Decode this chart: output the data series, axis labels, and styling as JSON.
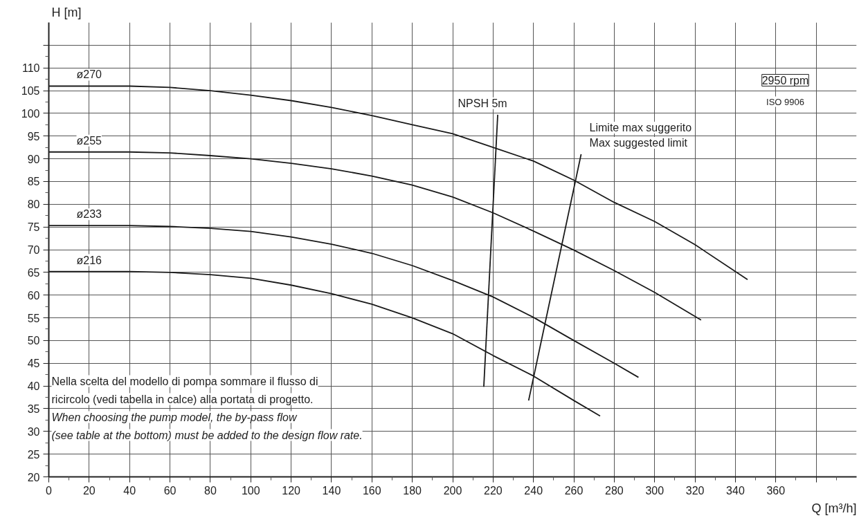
{
  "chart_data": {
    "type": "line",
    "subtitle": "2950 rpm",
    "xlabel": "Q [m³/h]",
    "ylabel": "H [m]",
    "series": [
      {
        "name": "ø270",
        "color": "#1a1a1a",
        "values": [
          106,
          106,
          105.7,
          105,
          104,
          102.8,
          101.3,
          99.5,
          97.5,
          95.5,
          92.5,
          89.5,
          85.3,
          80.4,
          76.2,
          71.1,
          63.4
        ],
        "x": [
          0,
          40,
          60,
          80,
          100,
          120,
          140,
          160,
          180,
          200,
          220,
          240,
          260,
          280,
          300,
          320,
          346
        ]
      },
      {
        "name": "ø255",
        "color": "#1a1a1a",
        "values": [
          91.5,
          91.5,
          91.3,
          90.7,
          90,
          89,
          87.8,
          86.2,
          84.2,
          81.6,
          78.1,
          74.1,
          69.9,
          65.4,
          60.6,
          54.5
        ],
        "x": [
          0,
          40,
          60,
          80,
          100,
          120,
          140,
          160,
          180,
          200,
          220,
          240,
          260,
          280,
          300,
          323
        ]
      },
      {
        "name": "ø233",
        "color": "#1a1a1a",
        "values": [
          75.3,
          75.3,
          75.1,
          74.7,
          74,
          72.8,
          71.2,
          69.2,
          66.5,
          63.2,
          59.6,
          55.1,
          50,
          45,
          41.9
        ],
        "x": [
          0,
          40,
          60,
          80,
          100,
          120,
          140,
          160,
          180,
          200,
          220,
          240,
          260,
          280,
          292
        ]
      },
      {
        "name": "ø216",
        "color": "#1a1a1a",
        "values": [
          65.2,
          65.2,
          65,
          64.5,
          63.7,
          62.2,
          60.3,
          58,
          55,
          51.5,
          46.7,
          42.2,
          36.8,
          33.4
        ],
        "x": [
          0,
          40,
          60,
          80,
          100,
          120,
          140,
          160,
          180,
          200,
          220,
          240,
          260,
          273
        ]
      },
      {
        "name": "NPSH 5m",
        "color": "#1a1a1a",
        "values": [
          39.8,
          99.7
        ],
        "x": [
          215.4,
          222.3
        ]
      },
      {
        "name": "Limite max suggerito\nMax suggested limit",
        "color": "#1a1a1a",
        "values": [
          36.8,
          91
        ],
        "x": [
          237.6,
          263.6
        ]
      }
    ],
    "xlim": [
      0,
      400
    ],
    "ylim": [
      20,
      120
    ],
    "xticks": [
      0,
      20,
      40,
      60,
      80,
      100,
      120,
      140,
      160,
      180,
      200,
      220,
      240,
      260,
      280,
      300,
      320,
      340,
      360,
      {
        "value": 380,
        "label": null
      }
    ],
    "yticks": [
      20,
      25,
      30,
      35,
      40,
      45,
      50,
      55,
      60,
      65,
      70,
      75,
      80,
      85,
      90,
      95,
      100,
      105,
      110,
      {
        "value": 115,
        "label": null
      }
    ],
    "grid": true,
    "annotations": [
      "ISO 9906",
      "Nella scelta del modello di pompa sommare il flusso di",
      "ricircolo (vedi tabella in calce) alla portata di progetto.",
      "When choosing the pump model, the by-pass flow",
      "(see table at the bottom) must be added to the design flow rate."
    ]
  }
}
